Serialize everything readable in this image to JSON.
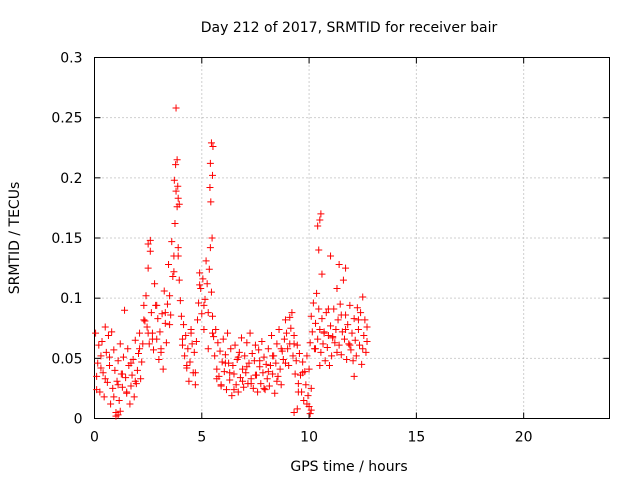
{
  "chart_data": {
    "type": "scatter",
    "title": "Day 212 of 2017, SRMTID for receiver bair",
    "xlabel": "GPS time / hours",
    "ylabel": "SRMTID / TECUs",
    "xlim": [
      0,
      24
    ],
    "ylim": [
      0,
      0.3
    ],
    "xticks": [
      0,
      5,
      10,
      15,
      20
    ],
    "xtick_labels": [
      "0",
      "5",
      "10",
      "15",
      "20"
    ],
    "yticks": [
      0,
      0.05,
      0.1,
      0.15,
      0.2,
      0.25,
      0.3
    ],
    "ytick_labels": [
      "0",
      "0.05",
      "0.1",
      "0.15",
      "0.2",
      "0.25",
      "0.3"
    ],
    "grid": true,
    "marker": "+",
    "color": "#ff0000",
    "series": [
      {
        "x": [
          0.05,
          0.1,
          0.15,
          0.2,
          0.25,
          0.3,
          0.35,
          0.4,
          0.45,
          0.5,
          0.55,
          0.6,
          0.65,
          0.7,
          0.75,
          0.8,
          0.85,
          0.9,
          0.95,
          1.0,
          1.05,
          1.1,
          1.15,
          1.2,
          1.25,
          1.3,
          1.35,
          1.4,
          1.45,
          1.5,
          1.55,
          1.6,
          1.65,
          1.7,
          1.75,
          1.8,
          1.85,
          1.9,
          1.95,
          2.0,
          2.05,
          2.1,
          2.15,
          2.2,
          2.25,
          2.3,
          2.35,
          2.4,
          2.45,
          2.5,
          2.55,
          2.6,
          2.65,
          2.7,
          2.75,
          2.8,
          2.85,
          2.9,
          2.95,
          3.0,
          3.05,
          3.1,
          3.15,
          3.2,
          3.25,
          3.3,
          3.35,
          3.4,
          3.45,
          3.5,
          3.55,
          3.6,
          3.65,
          3.7,
          3.75,
          3.8,
          3.85,
          3.9,
          3.95,
          4.0,
          4.05,
          4.1,
          4.15,
          4.2,
          4.25,
          4.3,
          4.35,
          4.4,
          4.45,
          4.5,
          4.55,
          4.6,
          4.65,
          4.7,
          4.75,
          4.8,
          4.85,
          4.9,
          4.95,
          5.0,
          5.05,
          5.1,
          5.15,
          5.2,
          5.25,
          5.3,
          5.35,
          5.4,
          5.45,
          5.5,
          5.55,
          5.6,
          5.65,
          5.7,
          5.75,
          5.8,
          5.85,
          5.9,
          5.95,
          6.0,
          6.05,
          6.1,
          6.15,
          6.2,
          6.25,
          6.3,
          6.35,
          6.4,
          6.45,
          6.5,
          6.55,
          6.6,
          6.65,
          6.7,
          6.75,
          6.8,
          6.85,
          6.9,
          6.95,
          7.0,
          7.05,
          7.1,
          7.15,
          7.2,
          7.25,
          7.3,
          7.35,
          7.4,
          7.45,
          7.5,
          7.55,
          7.6,
          7.65,
          7.7,
          7.75,
          7.8,
          7.85,
          7.9,
          7.95,
          8.0,
          8.05,
          8.1,
          8.15,
          8.2,
          8.25,
          8.3,
          8.35,
          8.4,
          8.45,
          8.5,
          8.55,
          8.6,
          8.65,
          8.7,
          8.75,
          8.8,
          8.85,
          8.9,
          8.95,
          9.0,
          9.05,
          9.1,
          9.15,
          9.2,
          9.25,
          9.3,
          9.35,
          9.4,
          9.45,
          9.5,
          9.55,
          9.6,
          9.65,
          9.7,
          9.75,
          9.8,
          9.85,
          9.9,
          9.95,
          10.0,
          10.05,
          10.1,
          10.15,
          10.2,
          10.25,
          10.3,
          10.35,
          10.4,
          10.45,
          10.5,
          10.55,
          10.6,
          10.65,
          10.7,
          10.75,
          10.8,
          10.85,
          10.9,
          10.95,
          11.0,
          11.05,
          11.1,
          11.15,
          11.2,
          11.25,
          11.3,
          11.35,
          11.4,
          11.45,
          11.5,
          11.55,
          11.6,
          11.65,
          11.7,
          11.75,
          11.8,
          11.85,
          11.9,
          11.95,
          12.0,
          12.05,
          12.1,
          12.15,
          12.2,
          12.25,
          12.3,
          12.35,
          12.4,
          12.45,
          12.5,
          12.55,
          12.6,
          12.65,
          12.7,
          0.1,
          0.3,
          0.5,
          0.7,
          0.9,
          1.1,
          1.3,
          1.5,
          1.7,
          1.9,
          2.1,
          2.3,
          2.5,
          2.7,
          2.9,
          3.1,
          3.3,
          3.5,
          3.7,
          3.9,
          4.1,
          4.3,
          4.5,
          4.7,
          4.9,
          5.1,
          5.3,
          5.5,
          5.7,
          5.9,
          6.1,
          6.3,
          6.5,
          6.7,
          6.9,
          7.1,
          7.3,
          7.5,
          7.7,
          7.9,
          8.1,
          8.3,
          8.5,
          8.7,
          8.9,
          9.1,
          9.3,
          9.5,
          9.7,
          9.9,
          10.1,
          10.3,
          10.5,
          10.7,
          10.9,
          11.1,
          11.3,
          11.5,
          11.7,
          11.9,
          12.1,
          12.3,
          12.5,
          12.7,
          3.72,
          3.78,
          3.85,
          3.9,
          3.95,
          3.8,
          3.88,
          5.4,
          5.45,
          5.5,
          5.42,
          5.48,
          5.52,
          5.38,
          10.4,
          10.5,
          10.55,
          10.45,
          10.6,
          11.0,
          11.4,
          11.7,
          9.3,
          9.45,
          2.5,
          2.6,
          1.1,
          1.2,
          10.0,
          10.05,
          1.0,
          10.1
        ],
        "y": [
          0.071,
          0.035,
          0.046,
          0.061,
          0.022,
          0.052,
          0.064,
          0.038,
          0.018,
          0.076,
          0.055,
          0.03,
          0.069,
          0.044,
          0.012,
          0.072,
          0.025,
          0.057,
          0.04,
          0.005,
          0.031,
          0.048,
          0.015,
          0.062,
          0.037,
          0.026,
          0.051,
          0.09,
          0.034,
          0.021,
          0.058,
          0.044,
          0.012,
          0.027,
          0.036,
          0.049,
          0.018,
          0.065,
          0.029,
          0.04,
          0.054,
          0.071,
          0.033,
          0.047,
          0.062,
          0.094,
          0.081,
          0.102,
          0.076,
          0.125,
          0.062,
          0.139,
          0.088,
          0.071,
          0.057,
          0.112,
          0.094,
          0.066,
          0.083,
          0.049,
          0.072,
          0.058,
          0.087,
          0.041,
          0.106,
          0.079,
          0.063,
          0.095,
          0.128,
          0.102,
          0.086,
          0.147,
          0.118,
          0.135,
          0.162,
          0.189,
          0.176,
          0.142,
          0.115,
          0.098,
          0.085,
          0.061,
          0.078,
          0.052,
          0.069,
          0.044,
          0.058,
          0.031,
          0.047,
          0.074,
          0.062,
          0.038,
          0.055,
          0.028,
          0.064,
          0.082,
          0.096,
          0.121,
          0.108,
          0.087,
          0.116,
          0.074,
          0.099,
          0.131,
          0.112,
          0.088,
          0.124,
          0.142,
          0.105,
          0.085,
          0.068,
          0.052,
          0.074,
          0.041,
          0.063,
          0.035,
          0.056,
          0.028,
          0.047,
          0.066,
          0.039,
          0.053,
          0.024,
          0.071,
          0.046,
          0.032,
          0.058,
          0.019,
          0.044,
          0.037,
          0.061,
          0.028,
          0.049,
          0.022,
          0.055,
          0.034,
          0.067,
          0.041,
          0.026,
          0.052,
          0.038,
          0.063,
          0.029,
          0.046,
          0.071,
          0.033,
          0.054,
          0.025,
          0.048,
          0.061,
          0.036,
          0.022,
          0.057,
          0.043,
          0.029,
          0.064,
          0.038,
          0.051,
          0.024,
          0.045,
          0.033,
          0.058,
          0.027,
          0.044,
          0.069,
          0.037,
          0.052,
          0.021,
          0.046,
          0.062,
          0.035,
          0.074,
          0.041,
          0.028,
          0.056,
          0.049,
          0.066,
          0.082,
          0.071,
          0.058,
          0.044,
          0.062,
          0.075,
          0.088,
          0.052,
          0.069,
          0.037,
          0.048,
          0.061,
          0.029,
          0.054,
          0.036,
          0.022,
          0.047,
          0.015,
          0.039,
          0.028,
          0.052,
          0.019,
          0.041,
          0.063,
          0.085,
          0.072,
          0.096,
          0.058,
          0.079,
          0.104,
          0.066,
          0.091,
          0.074,
          0.055,
          0.083,
          0.062,
          0.071,
          0.048,
          0.088,
          0.059,
          0.069,
          0.044,
          0.077,
          0.052,
          0.068,
          0.091,
          0.063,
          0.074,
          0.108,
          0.082,
          0.061,
          0.095,
          0.053,
          0.072,
          0.115,
          0.066,
          0.086,
          0.049,
          0.078,
          0.062,
          0.094,
          0.057,
          0.071,
          0.048,
          0.083,
          0.065,
          0.052,
          0.092,
          0.074,
          0.061,
          0.088,
          0.045,
          0.101,
          0.069,
          0.082,
          0.055,
          0.076,
          0.024,
          0.042,
          0.033,
          0.051,
          0.018,
          0.028,
          0.037,
          0.022,
          0.046,
          0.031,
          0.058,
          0.082,
          0.071,
          0.066,
          0.094,
          0.055,
          0.088,
          0.078,
          0.122,
          0.135,
          0.066,
          0.042,
          0.071,
          0.038,
          0.111,
          0.094,
          0.058,
          0.071,
          0.033,
          0.027,
          0.046,
          0.038,
          0.024,
          0.051,
          0.031,
          0.043,
          0.029,
          0.036,
          0.048,
          0.025,
          0.039,
          0.052,
          0.031,
          0.058,
          0.046,
          0.084,
          0.062,
          0.022,
          0.038,
          0.012,
          0.025,
          0.058,
          0.044,
          0.072,
          0.091,
          0.067,
          0.055,
          0.086,
          0.074,
          0.061,
          0.035,
          0.082,
          0.058,
          0.064,
          0.198,
          0.211,
          0.215,
          0.183,
          0.178,
          0.258,
          0.193,
          0.212,
          0.229,
          0.202,
          0.18,
          0.15,
          0.226,
          0.192,
          0.16,
          0.165,
          0.17,
          0.14,
          0.12,
          0.135,
          0.128,
          0.125,
          0.005,
          0.008,
          0.145,
          0.148,
          0.003,
          0.006,
          0.01,
          0.004,
          0.002,
          0.007
        ]
      }
    ]
  }
}
